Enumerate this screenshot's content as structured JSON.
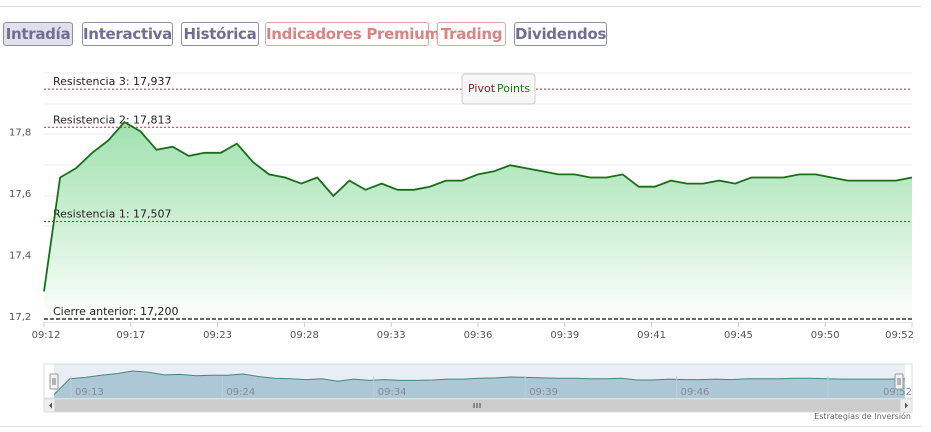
{
  "tabs": [
    {
      "label": "Intradía",
      "style": "active"
    },
    {
      "label": "Interactiva",
      "style": "muted"
    },
    {
      "label": "Histórica",
      "style": "muted"
    },
    {
      "label": "Indicadores Premium",
      "style": "red"
    },
    {
      "label": "Trading",
      "style": "red"
    },
    {
      "label": "Dividendos",
      "style": "muted"
    }
  ],
  "colors": {
    "line": "#1a6e1a",
    "area_top": "#8fdca0",
    "resistance": "#b03030",
    "previous_close": "#333333",
    "navigator_fill": "#b9d3d9",
    "navigator_line": "#3f8a6a"
  },
  "tooltip": {
    "word1": "Pivot",
    "word2": "Points",
    "color1": "#8b1a1a",
    "color2": "#1a7a1a"
  },
  "credit": "Estrategias de Inversión",
  "chart_data": {
    "type": "area",
    "x_ticks": [
      "09:12",
      "09:17",
      "09:23",
      "09:28",
      "09:33",
      "09:36",
      "09:39",
      "09:41",
      "09:45",
      "09:50",
      "09:52"
    ],
    "y_ticks": [
      "17,2",
      "17,4",
      "17,6",
      "17,8"
    ],
    "ylim": [
      17.2,
      17.9
    ],
    "values": [
      17.28,
      17.65,
      17.68,
      17.73,
      17.77,
      17.83,
      17.8,
      17.74,
      17.75,
      17.72,
      17.73,
      17.73,
      17.76,
      17.7,
      17.66,
      17.65,
      17.63,
      17.65,
      17.59,
      17.64,
      17.61,
      17.63,
      17.61,
      17.61,
      17.62,
      17.64,
      17.64,
      17.66,
      17.67,
      17.69,
      17.68,
      17.67,
      17.66,
      17.66,
      17.65,
      17.65,
      17.66,
      17.62,
      17.62,
      17.64,
      17.63,
      17.63,
      17.64,
      17.63,
      17.65,
      17.65,
      17.65,
      17.66,
      17.66,
      17.65,
      17.64,
      17.64,
      17.64,
      17.64,
      17.65
    ],
    "reference_lines": [
      {
        "label": "Resistencia 3: 17,937",
        "value": 17.937,
        "kind": "resistance"
      },
      {
        "label": "Resistencia 2: 17,813",
        "value": 17.813,
        "kind": "resistance"
      },
      {
        "label": "Resistencia 1: 17,507",
        "value": 17.507,
        "kind": "resistance"
      },
      {
        "label": "Cierre anterior: 17,200",
        "value": 17.2,
        "kind": "previous_close"
      }
    ],
    "navigator_ticks": [
      "09:13",
      "09:24",
      "09:34",
      "09:39",
      "09:46",
      "09:52"
    ],
    "grid": true,
    "legend": "none"
  }
}
